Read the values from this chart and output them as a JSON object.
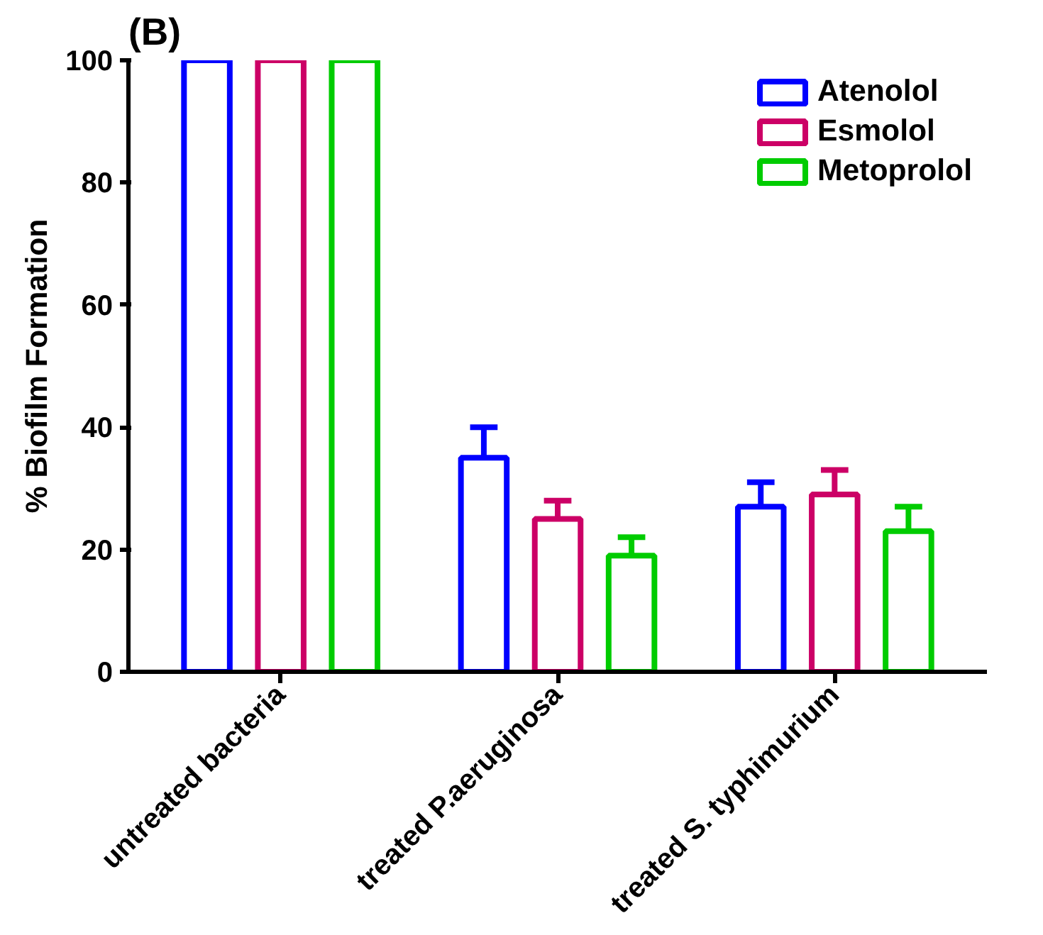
{
  "chart_data": {
    "type": "bar",
    "title": "(B)",
    "ylabel": "% Biofilm Formation",
    "categories": [
      "untreated bacteria",
      "treated P.aeruginosa",
      "treated S. typhimurium"
    ],
    "series": [
      {
        "name": "Atenolol",
        "color": "#0000ff",
        "values": [
          100,
          35,
          27
        ],
        "errors": [
          null,
          [
            35,
            40
          ],
          [
            27,
            31
          ]
        ]
      },
      {
        "name": "Esmolol",
        "color": "#cc0066",
        "values": [
          100,
          25,
          29
        ],
        "errors": [
          null,
          [
            25,
            28
          ],
          [
            29,
            33
          ]
        ]
      },
      {
        "name": "Metoprolol",
        "color": "#00cc00",
        "values": [
          100,
          19,
          23
        ],
        "errors": [
          null,
          [
            19,
            22
          ],
          [
            23,
            27
          ]
        ]
      }
    ],
    "ylim": [
      0,
      100
    ],
    "yticks": [
      0,
      20,
      40,
      60,
      80,
      100
    ],
    "grid": false,
    "legend": "top right"
  }
}
